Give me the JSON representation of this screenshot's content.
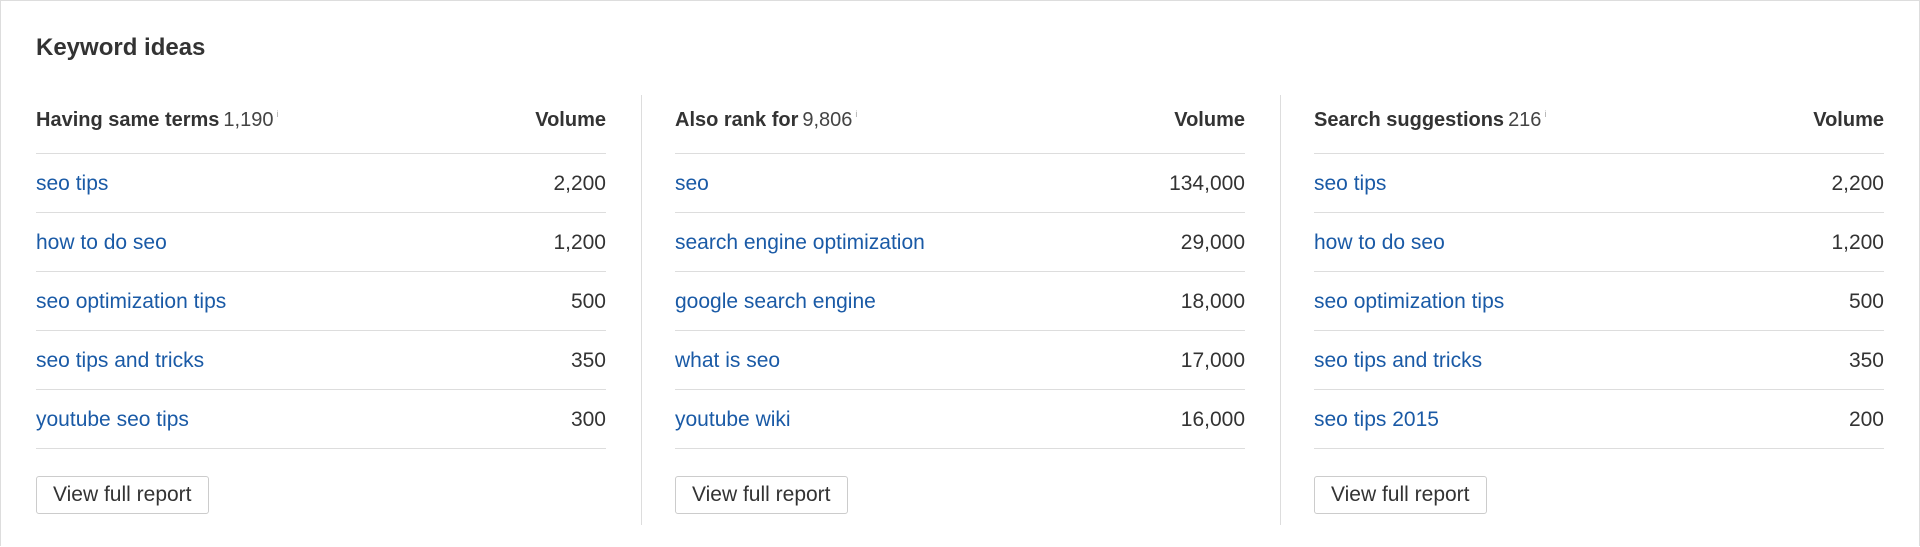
{
  "header": {
    "title": "Keyword ideas"
  },
  "panels": [
    {
      "title": "Having same terms",
      "count": "1,190",
      "info": "i",
      "column": "Volume",
      "rows": [
        [
          "seo tips",
          "2,200"
        ],
        [
          "how to do seo",
          "1,200"
        ],
        [
          "seo optimization tips",
          "500"
        ],
        [
          "seo tips and tricks",
          "350"
        ],
        [
          "youtube seo tips",
          "300"
        ]
      ],
      "button": "View full report"
    },
    {
      "title": "Also rank for",
      "count": "9,806",
      "info": "i",
      "column": "Volume",
      "rows": [
        [
          "seo",
          "134,000"
        ],
        [
          "search engine optimization",
          "29,000"
        ],
        [
          "google search engine",
          "18,000"
        ],
        [
          "what is seo",
          "17,000"
        ],
        [
          "youtube wiki",
          "16,000"
        ]
      ],
      "button": "View full report"
    },
    {
      "title": "Search suggestions",
      "count": "216",
      "info": "i",
      "column": "Volume",
      "rows": [
        [
          "seo tips",
          "2,200"
        ],
        [
          "how to do seo",
          "1,200"
        ],
        [
          "seo optimization tips",
          "500"
        ],
        [
          "seo tips and tricks",
          "350"
        ],
        [
          "seo tips 2015",
          "200"
        ]
      ],
      "button": "View full report"
    }
  ]
}
